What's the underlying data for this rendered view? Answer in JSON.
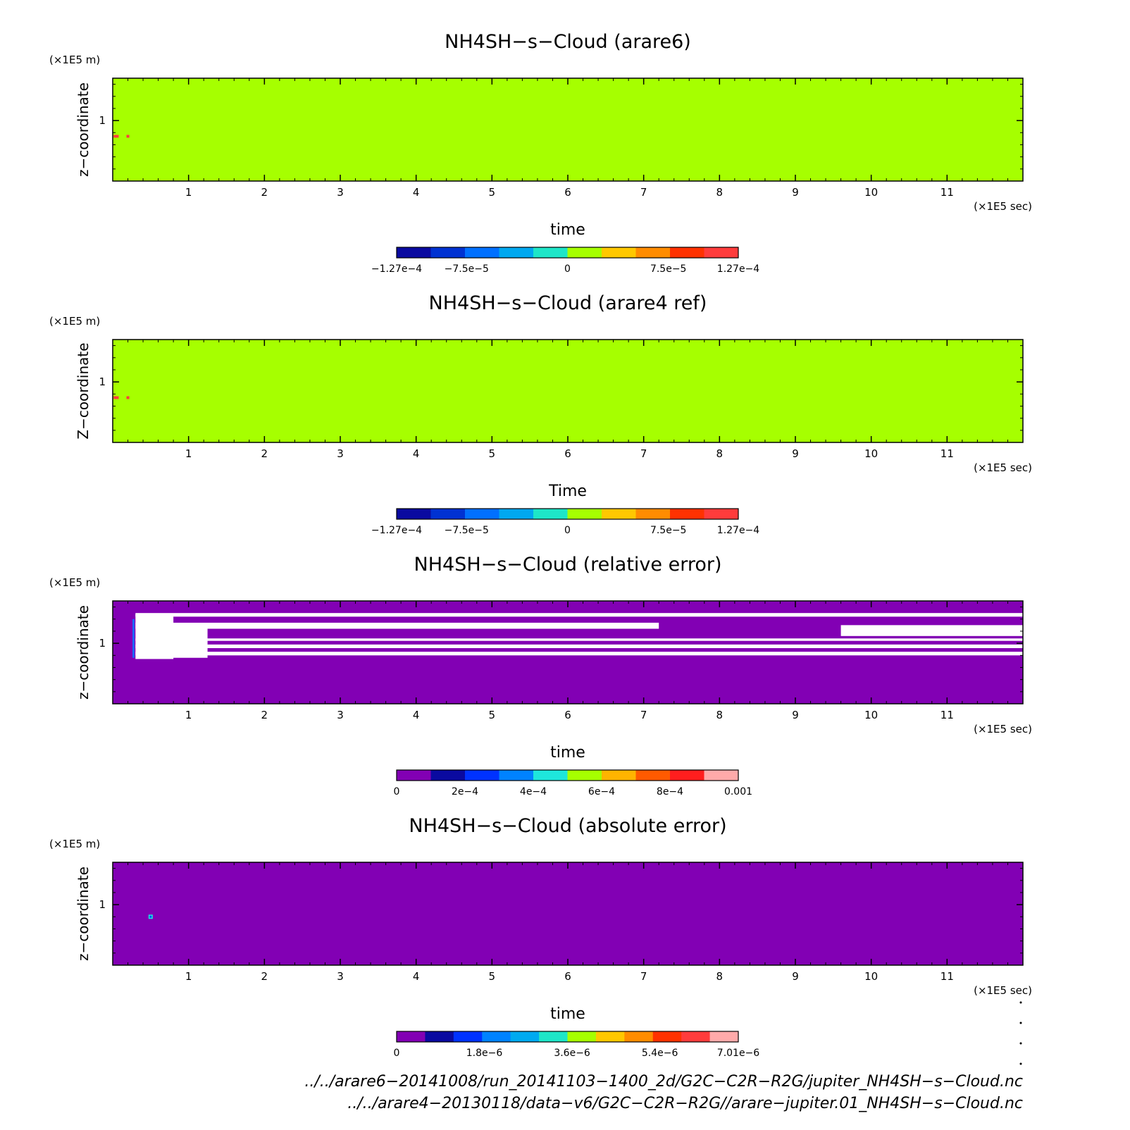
{
  "chart_data": [
    {
      "type": "heatmap",
      "title": "NH4SH−s−Cloud (arare6)",
      "xlabel": "time",
      "ylabel": "z−coordinate",
      "x_unit": "(×1E5 sec)",
      "y_unit": "(×1E5 m)",
      "x_ticks": [
        "1",
        "2",
        "3",
        "4",
        "5",
        "6",
        "7",
        "8",
        "9",
        "10",
        "11"
      ],
      "y_ticks": [
        "1"
      ],
      "xlim": [
        0,
        12
      ],
      "ylim": [
        0.5,
        1.35
      ],
      "field": "uniform value 0 with a few small positive cells near t=0.05, z=0.87",
      "colorbar": {
        "colors": [
          "#0a0aa0",
          "#0032d2",
          "#0070ff",
          "#00a8f0",
          "#1ee6c8",
          "#a6ff00",
          "#ffc800",
          "#ff8c00",
          "#ff3200",
          "#ff3c3c"
        ],
        "tick_labels": [
          "−1.27e−4",
          "−7.5e−5",
          "0",
          "7.5e−5",
          "1.27e−4"
        ],
        "tick_values": [
          -0.000127,
          -7.5e-05,
          0,
          7.5e-05,
          0.000127
        ],
        "range": [
          -0.000127,
          0.000127
        ]
      }
    },
    {
      "type": "heatmap",
      "title": "NH4SH−s−Cloud (arare4 ref)",
      "xlabel": "Time",
      "ylabel": "Z−coordinate",
      "x_unit": "(×1E5 sec)",
      "y_unit": "(×1E5 m)",
      "x_ticks": [
        "1",
        "2",
        "3",
        "4",
        "5",
        "6",
        "7",
        "8",
        "9",
        "10",
        "11"
      ],
      "y_ticks": [
        "1"
      ],
      "xlim": [
        0,
        12
      ],
      "ylim": [
        0.5,
        1.35
      ],
      "field": "uniform value 0 with a few small positive cells near t=0.05, z=0.87",
      "colorbar": {
        "colors": [
          "#0a0aa0",
          "#0032d2",
          "#0070ff",
          "#00a8f0",
          "#1ee6c8",
          "#a6ff00",
          "#ffc800",
          "#ff8c00",
          "#ff3200",
          "#ff3c3c"
        ],
        "tick_labels": [
          "−1.27e−4",
          "−7.5e−5",
          "0",
          "7.5e−5",
          "1.27e−4"
        ],
        "tick_values": [
          -0.000127,
          -7.5e-05,
          0,
          7.5e-05,
          0.000127
        ],
        "range": [
          -0.000127,
          0.000127
        ]
      }
    },
    {
      "type": "heatmap",
      "title": "NH4SH−s−Cloud (relative error)",
      "xlabel": "time",
      "ylabel": "z−coordinate",
      "x_unit": "(×1E5 sec)",
      "y_unit": "(×1E5 m)",
      "x_ticks": [
        "1",
        "2",
        "3",
        "4",
        "5",
        "6",
        "7",
        "8",
        "9",
        "10",
        "11"
      ],
      "y_ticks": [
        "1"
      ],
      "xlim": [
        0,
        12
      ],
      "ylim": [
        0.5,
        1.35
      ],
      "field": "mostly 0; undefined (white) horizontal bands between z≈0.87 and z≈1.24",
      "colorbar": {
        "colors": [
          "#8200b4",
          "#0a0aa0",
          "#0032ff",
          "#0082ff",
          "#1ee6dc",
          "#a6ff00",
          "#ffb400",
          "#ff5a00",
          "#ff1e1e",
          "#ffaaaa"
        ],
        "tick_labels": [
          "0",
          "2e−4",
          "4e−4",
          "6e−4",
          "8e−4",
          "0.001"
        ],
        "tick_values": [
          0,
          0.0002,
          0.0004,
          0.0006,
          0.0008,
          0.001
        ],
        "range": [
          0,
          0.001
        ]
      }
    },
    {
      "type": "heatmap",
      "title": "NH4SH−s−Cloud (absolute error)",
      "xlabel": "time",
      "ylabel": "z−coordinate",
      "x_unit": "(×1E5 sec)",
      "y_unit": "(×1E5 m)",
      "x_ticks": [
        "1",
        "2",
        "3",
        "4",
        "5",
        "6",
        "7",
        "8",
        "9",
        "10",
        "11"
      ],
      "y_ticks": [
        "1"
      ],
      "xlim": [
        0,
        12
      ],
      "ylim": [
        0.5,
        1.35
      ],
      "field": "uniform value 0 with a single small spot near t=0.5, z=0.9",
      "colorbar": {
        "colors": [
          "#8200b4",
          "#0a0aa0",
          "#0032ff",
          "#0082ff",
          "#00aaf0",
          "#1ee6c8",
          "#a6ff00",
          "#ffc800",
          "#ff8c00",
          "#ff3200",
          "#ff3c3c",
          "#ffaaaa"
        ],
        "tick_labels": [
          "0",
          "1.8e−6",
          "3.6e−6",
          "5.4e−6",
          "7.01e−6"
        ],
        "tick_values": [
          0,
          1.8e-06,
          3.6e-06,
          5.4e-06,
          7.01e-06
        ],
        "range": [
          0,
          7.01e-06
        ]
      }
    }
  ],
  "footer": [
    "../../arare6−20141008/run_20141103−1400_2d/G2C−C2R−R2G/jupiter_NH4SH−s−Cloud.nc",
    "../../arare4−20130118/data−v6/G2C−C2R−R2G//arare−jupiter.01_NH4SH−s−Cloud.nc"
  ],
  "colors": {
    "field_zero_diff": "#a6ff00",
    "field_zero_err": "#8200b4",
    "undefined": "#ffffff",
    "spot": "#ff3c3c",
    "frame": "#000000"
  }
}
